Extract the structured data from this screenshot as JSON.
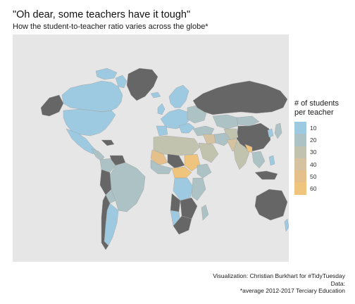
{
  "title": "\"Oh dear, some teachers have it tough\"",
  "subtitle": "How the student-to-teacher ratio varies across the globe*",
  "legend": {
    "title_line1": "# of students",
    "title_line2": "per teacher",
    "items": [
      {
        "label": "10",
        "color": "#9ecae1"
      },
      {
        "label": "20",
        "color": "#acc2c4"
      },
      {
        "label": "30",
        "color": "#c2c3ae"
      },
      {
        "label": "40",
        "color": "#d5c2a0"
      },
      {
        "label": "50",
        "color": "#e5c08a"
      },
      {
        "label": "60",
        "color": "#efc47c"
      }
    ]
  },
  "caption": {
    "line1": "Visualization: Christian Burkhart for #TidyTuesday",
    "line2": "Data:",
    "line3": "*average 2012-2017 Terciary Education"
  },
  "colors": {
    "panel_background": "#e6e6e6",
    "no_data": "#666666",
    "border": "#9a9a9a"
  }
}
